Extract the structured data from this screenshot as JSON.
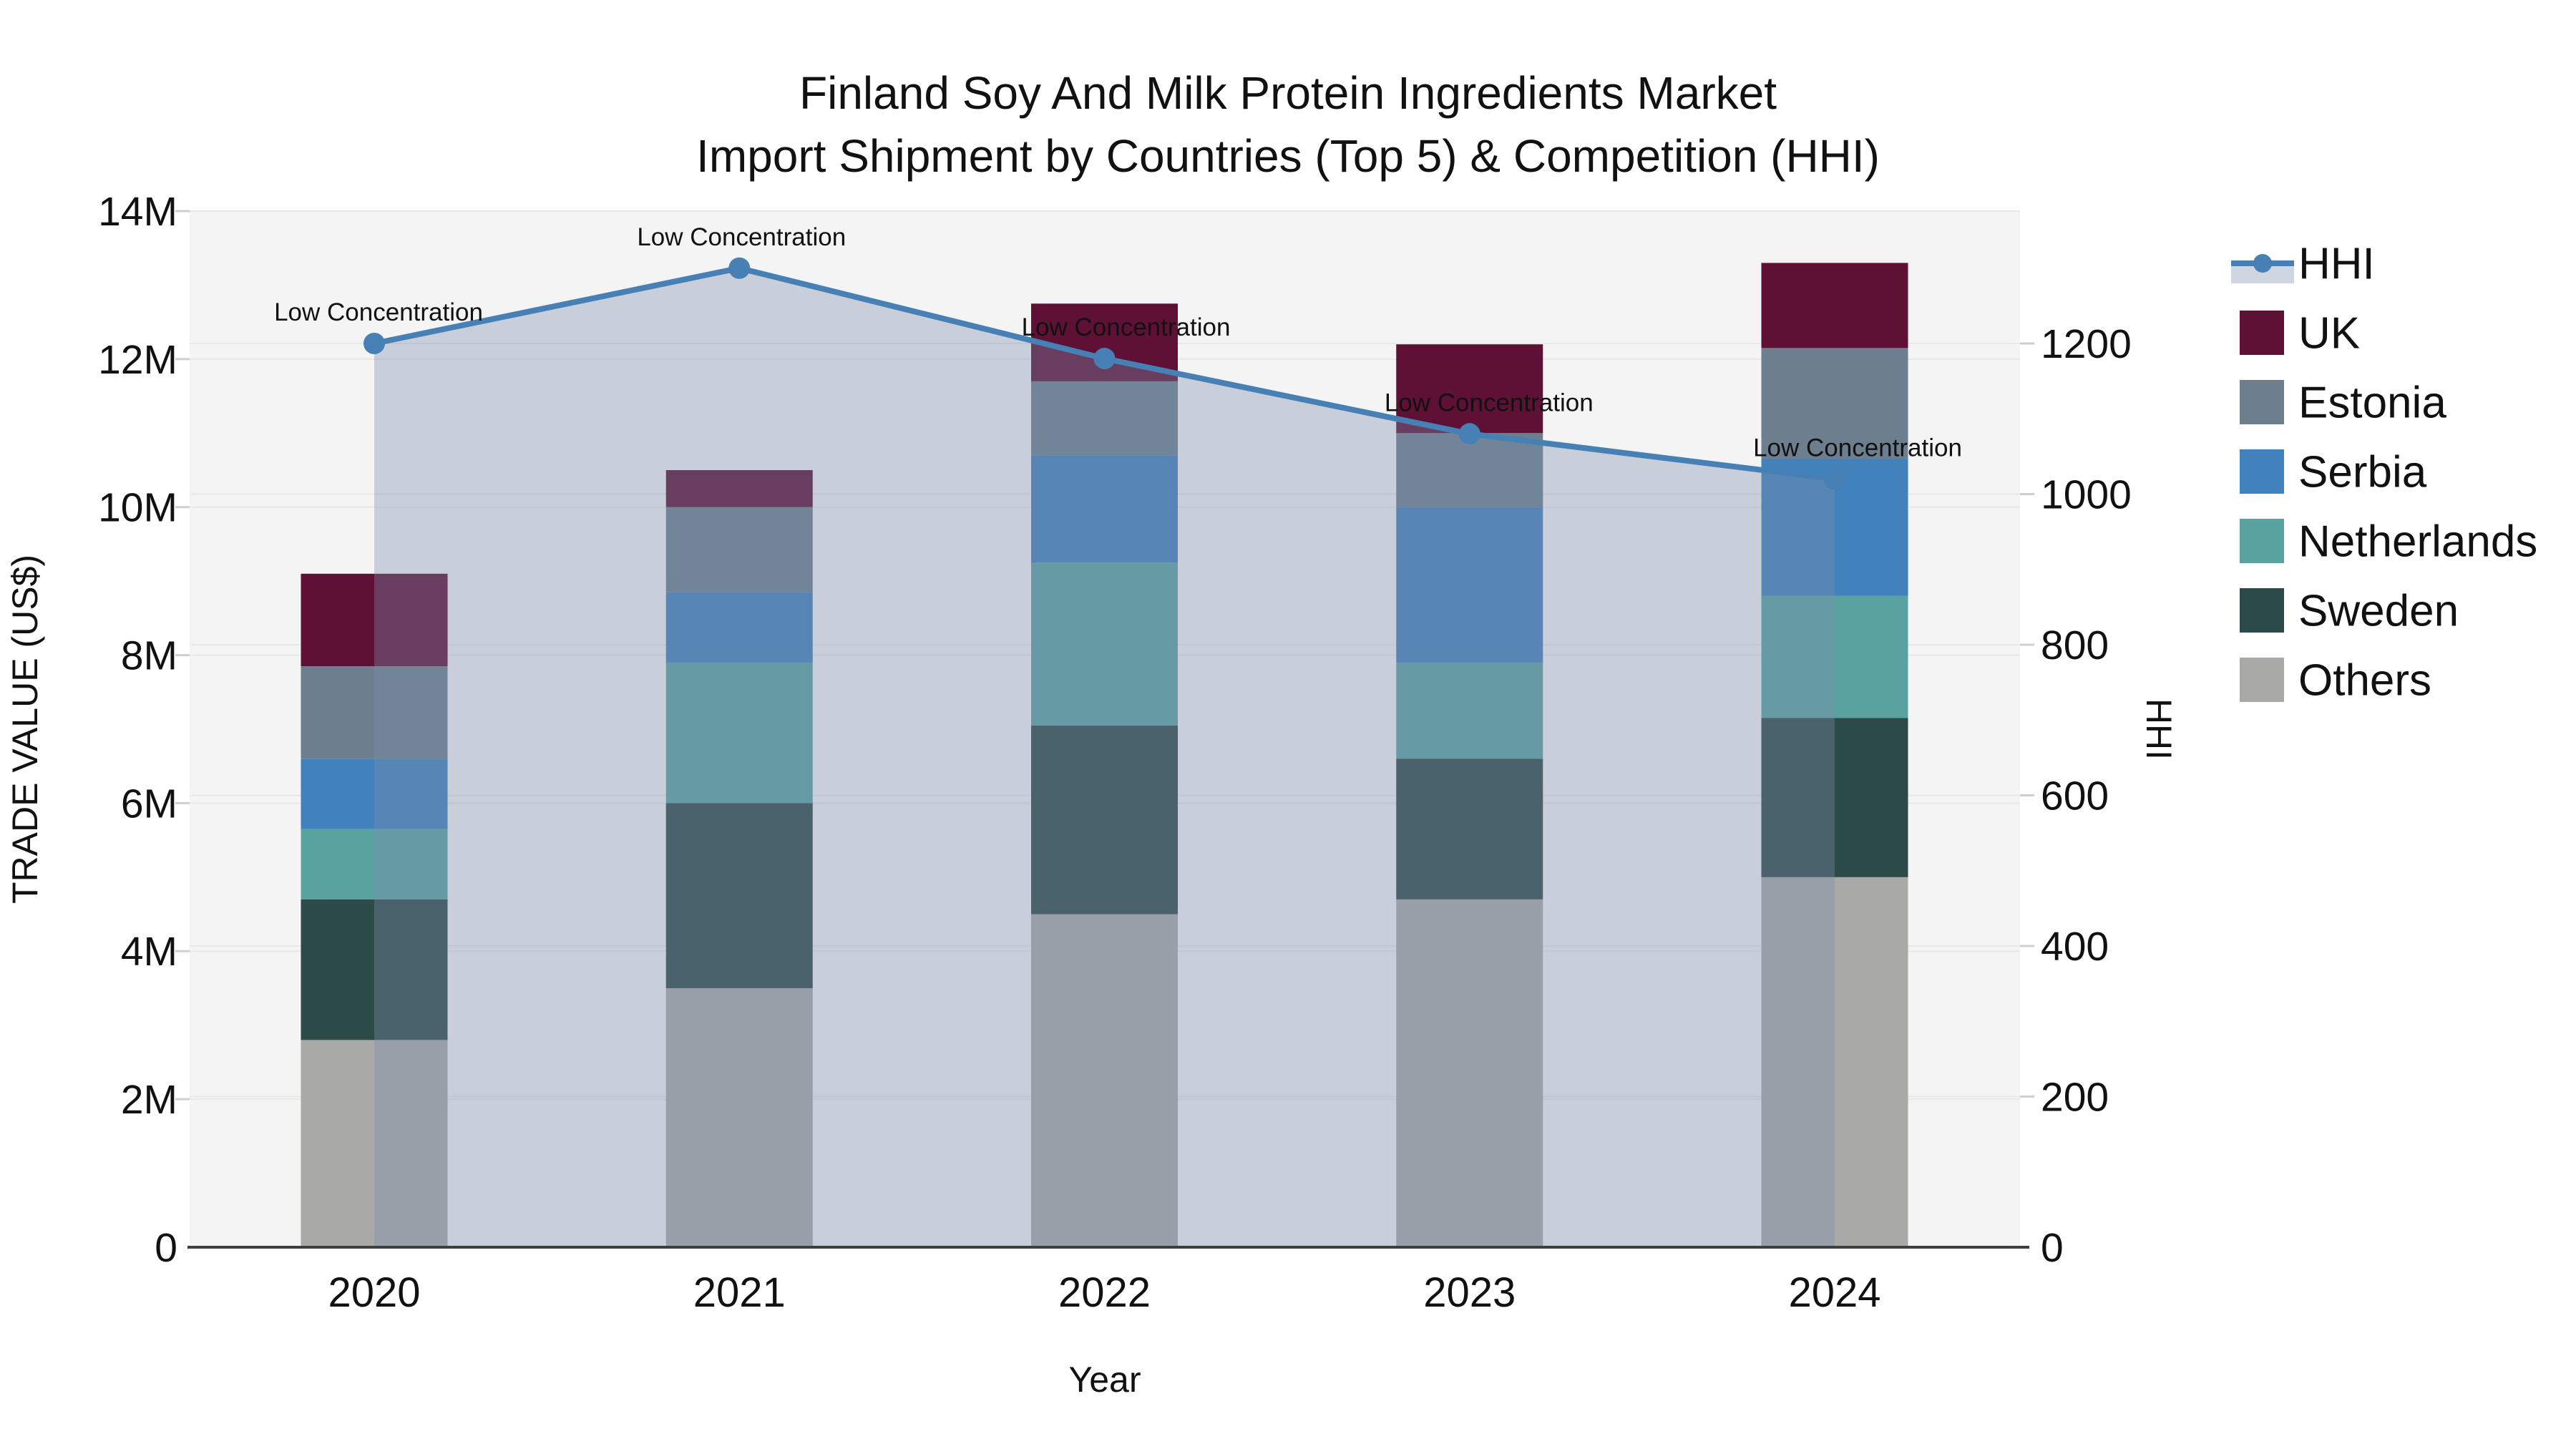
{
  "title": {
    "line1": "Finland Soy And Milk Protein Ingredients Market",
    "line2": "Import Shipment by Countries (Top 5) & Competition (HHI)"
  },
  "axes": {
    "left": {
      "title": "TRADE VALUE (US$)",
      "tick_labels": [
        "0",
        "2M",
        "4M",
        "6M",
        "8M",
        "10M",
        "12M",
        "14M"
      ],
      "tick_values": [
        0,
        2,
        4,
        6,
        8,
        10,
        12,
        14
      ],
      "max": 14
    },
    "right": {
      "title": "HHI",
      "tick_labels": [
        "0",
        "200",
        "400",
        "600",
        "800",
        "1000",
        "1200"
      ],
      "tick_values": [
        0,
        200,
        400,
        600,
        800,
        1000,
        1200
      ]
    },
    "x": {
      "title": "Year",
      "categories": [
        "2020",
        "2021",
        "2022",
        "2023",
        "2024"
      ]
    }
  },
  "chart_data": {
    "type": "bar+line",
    "categories": [
      "2020",
      "2021",
      "2022",
      "2023",
      "2024"
    ],
    "bar_unit": "millions US$",
    "stack_order_bottom_to_top": [
      "Others",
      "Sweden",
      "Netherlands",
      "Serbia",
      "Estonia",
      "UK"
    ],
    "series": [
      {
        "name": "Others",
        "color": "#a9a9a7",
        "values": [
          2.8,
          3.5,
          4.5,
          4.7,
          5.0
        ]
      },
      {
        "name": "Sweden",
        "color": "#2c4a47",
        "values": [
          1.9,
          2.5,
          2.55,
          1.9,
          2.15
        ]
      },
      {
        "name": "Netherlands",
        "color": "#5aa2a0",
        "values": [
          0.95,
          1.9,
          2.2,
          1.3,
          1.65
        ]
      },
      {
        "name": "Serbia",
        "color": "#4181bc",
        "values": [
          0.95,
          0.95,
          1.45,
          2.1,
          1.85
        ]
      },
      {
        "name": "Estonia",
        "color": "#6d7f8e",
        "values": [
          1.25,
          1.15,
          1.0,
          1.0,
          1.5
        ]
      },
      {
        "name": "UK",
        "color": "#5f1135",
        "values": [
          1.25,
          0.5,
          1.05,
          1.2,
          1.15
        ]
      }
    ],
    "bar_totals": [
      9.1,
      10.5,
      12.75,
      12.2,
      13.3
    ],
    "line": {
      "name": "HHI",
      "values": [
        1200,
        1300,
        1180,
        1080,
        1020
      ],
      "color": "#4680b4",
      "fill_color": "rgba(124,141,172,0.36)"
    },
    "annotations": [
      {
        "text": "Low Concentration"
      },
      {
        "text": "Low Concentration"
      },
      {
        "text": "Low Concentration"
      },
      {
        "text": "Low Concentration"
      },
      {
        "text": "Low Concentration"
      }
    ],
    "ylabel_left": "TRADE VALUE (US$)",
    "ylabel_right": "HHI",
    "xlabel": "Year",
    "ylim_left": [
      0,
      14000000
    ],
    "ylim_right": [
      0,
      1376
    ],
    "grid": true,
    "legend_position": "right"
  },
  "legend": {
    "entries": [
      {
        "label": "HHI",
        "type": "line",
        "color": "#4680b4",
        "band_color": "#d0d6e1"
      },
      {
        "label": "UK",
        "type": "square",
        "color": "#5f1135"
      },
      {
        "label": "Estonia",
        "type": "square",
        "color": "#6d7f8e"
      },
      {
        "label": "Serbia",
        "type": "square",
        "color": "#4181bc"
      },
      {
        "label": "Netherlands",
        "type": "square",
        "color": "#5aa2a0"
      },
      {
        "label": "Sweden",
        "type": "square",
        "color": "#2c4a47"
      },
      {
        "label": "Others",
        "type": "square",
        "color": "#a9a9a7"
      }
    ]
  },
  "colors": {
    "plot_background": "#f4f4f4",
    "page_background": "#ffffff",
    "gridline": "#e8e8e8",
    "axis_line": "#3f3f3f",
    "annotation_text": "#111111"
  }
}
